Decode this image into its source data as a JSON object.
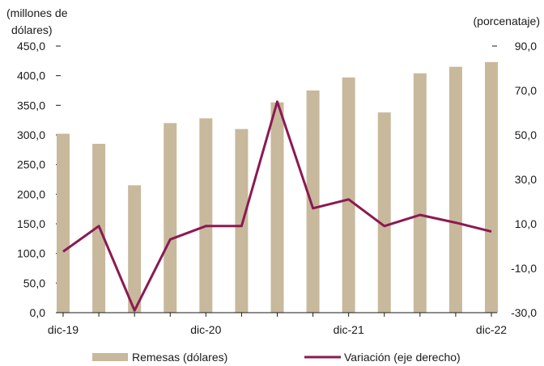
{
  "chart_data": {
    "type": "bar",
    "ylabel_left_line1": "(millones de",
    "ylabel_left_line2": "dólares)",
    "ylabel_right": "(porcenataje)",
    "categories": [
      "dic-19",
      "",
      "",
      "",
      "dic-20",
      "",
      "",
      "",
      "dic-21",
      "",
      "",
      "",
      "dic-22"
    ],
    "x_tick_labels": [
      "dic-19",
      "dic-20",
      "dic-21",
      "dic-22"
    ],
    "x_tick_positions": [
      0,
      4,
      8,
      12
    ],
    "ylim_left": [
      0,
      450
    ],
    "ylim_right": [
      -30,
      90
    ],
    "yticks_left": [
      "0,0",
      "50,0",
      "100,0",
      "150,0",
      "200,0",
      "250,0",
      "300,0",
      "350,0",
      "400,0",
      "450,0"
    ],
    "yticks_right": [
      "-30,0",
      "-10,0",
      "10,0",
      "30,0",
      "50,0",
      "70,0",
      "90,0"
    ],
    "series": [
      {
        "name": "Remesas (dólares)",
        "kind": "bar",
        "axis": "left",
        "color": "#c8b99c",
        "values": [
          302,
          285,
          215,
          320,
          328,
          310,
          355,
          375,
          397,
          338,
          404,
          415,
          423
        ]
      },
      {
        "name": "Variación (eje derecho)",
        "kind": "line",
        "axis": "right",
        "color": "#8b1a52",
        "values": [
          -2.5,
          9,
          -29,
          3,
          9,
          9,
          65,
          17,
          21,
          9,
          14,
          10.5,
          6.5
        ]
      }
    ],
    "legend_position": "bottom",
    "grid": false
  }
}
